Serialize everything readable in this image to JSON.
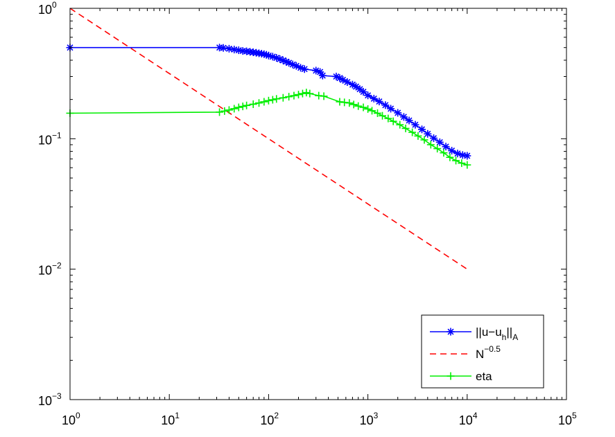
{
  "chart_data": {
    "type": "line",
    "title": "",
    "xlabel": "",
    "ylabel": "",
    "x_scale": "log",
    "y_scale": "log",
    "xlim": [
      1,
      100000
    ],
    "ylim": [
      0.001,
      1
    ],
    "grid": false,
    "legend_position": "bottom-right",
    "x_ticks": [
      {
        "base": "10",
        "exp": "0",
        "value": 1
      },
      {
        "base": "10",
        "exp": "1",
        "value": 10
      },
      {
        "base": "10",
        "exp": "2",
        "value": 100
      },
      {
        "base": "10",
        "exp": "3",
        "value": 1000
      },
      {
        "base": "10",
        "exp": "4",
        "value": 10000
      },
      {
        "base": "10",
        "exp": "5",
        "value": 100000
      }
    ],
    "y_ticks": [
      {
        "base": "10",
        "exp": "0",
        "value": 1
      },
      {
        "base": "10",
        "exp": "−1",
        "value": 0.1
      },
      {
        "base": "10",
        "exp": "−2",
        "value": 0.01
      },
      {
        "base": "10",
        "exp": "−3",
        "value": 0.001
      }
    ],
    "series": [
      {
        "name": "||u−u_h||_A",
        "legend": {
          "main": "||u−u",
          "sub1": "h",
          "mid": "||",
          "sub2": "A"
        },
        "color": "#0000ff",
        "marker": "asterisk",
        "line": "solid",
        "points": [
          [
            1,
            0.5
          ],
          [
            32,
            0.5
          ],
          [
            35,
            0.497
          ],
          [
            40,
            0.49
          ],
          [
            45,
            0.483
          ],
          [
            50,
            0.477
          ],
          [
            55,
            0.471
          ],
          [
            60,
            0.468
          ],
          [
            65,
            0.464
          ],
          [
            70,
            0.46
          ],
          [
            75,
            0.456
          ],
          [
            80,
            0.452
          ],
          [
            85,
            0.449
          ],
          [
            90,
            0.445
          ],
          [
            95,
            0.44
          ],
          [
            100,
            0.434
          ],
          [
            110,
            0.426
          ],
          [
            120,
            0.417
          ],
          [
            130,
            0.408
          ],
          [
            140,
            0.399
          ],
          [
            150,
            0.39
          ],
          [
            160,
            0.382
          ],
          [
            175,
            0.371
          ],
          [
            190,
            0.362
          ],
          [
            210,
            0.35
          ],
          [
            230,
            0.342
          ],
          [
            300,
            0.333
          ],
          [
            330,
            0.325
          ],
          [
            350,
            0.305
          ],
          [
            480,
            0.3
          ],
          [
            520,
            0.292
          ],
          [
            560,
            0.283
          ],
          [
            620,
            0.272
          ],
          [
            700,
            0.26
          ],
          [
            760,
            0.251
          ],
          [
            830,
            0.24
          ],
          [
            900,
            0.229
          ],
          [
            1000,
            0.215
          ],
          [
            1150,
            0.203
          ],
          [
            1300,
            0.193
          ],
          [
            1500,
            0.181
          ],
          [
            1700,
            0.17
          ],
          [
            2000,
            0.158
          ],
          [
            2300,
            0.147
          ],
          [
            2600,
            0.138
          ],
          [
            3000,
            0.128
          ],
          [
            3500,
            0.118
          ],
          [
            4000,
            0.109
          ],
          [
            4600,
            0.101
          ],
          [
            5300,
            0.094
          ],
          [
            6100,
            0.087
          ],
          [
            7000,
            0.081
          ],
          [
            8000,
            0.077
          ],
          [
            9000,
            0.075
          ],
          [
            10000,
            0.074
          ]
        ]
      },
      {
        "name": "N^−0.5",
        "legend": {
          "main": "N",
          "sup": "−0.5"
        },
        "color": "#ff0000",
        "marker": "none",
        "line": "dashed",
        "points": [
          [
            1,
            1
          ],
          [
            10000,
            0.01
          ]
        ]
      },
      {
        "name": "eta",
        "legend": {
          "main": "eta"
        },
        "color": "#00ee00",
        "marker": "plus",
        "line": "solid",
        "points": [
          [
            1,
            0.157
          ],
          [
            32,
            0.16
          ],
          [
            36,
            0.163
          ],
          [
            40,
            0.166
          ],
          [
            45,
            0.17
          ],
          [
            50,
            0.174
          ],
          [
            55,
            0.177
          ],
          [
            60,
            0.18
          ],
          [
            70,
            0.184
          ],
          [
            80,
            0.188
          ],
          [
            90,
            0.192
          ],
          [
            100,
            0.196
          ],
          [
            110,
            0.199
          ],
          [
            120,
            0.202
          ],
          [
            140,
            0.206
          ],
          [
            160,
            0.21
          ],
          [
            180,
            0.214
          ],
          [
            200,
            0.218
          ],
          [
            220,
            0.222
          ],
          [
            240,
            0.226
          ],
          [
            260,
            0.222
          ],
          [
            320,
            0.214
          ],
          [
            360,
            0.212
          ],
          [
            520,
            0.192
          ],
          [
            580,
            0.19
          ],
          [
            650,
            0.188
          ],
          [
            720,
            0.183
          ],
          [
            800,
            0.178
          ],
          [
            900,
            0.174
          ],
          [
            1000,
            0.169
          ],
          [
            1100,
            0.164
          ],
          [
            1250,
            0.157
          ],
          [
            1400,
            0.15
          ],
          [
            1600,
            0.143
          ],
          [
            1800,
            0.136
          ],
          [
            2100,
            0.128
          ],
          [
            2400,
            0.12
          ],
          [
            2800,
            0.112
          ],
          [
            3200,
            0.105
          ],
          [
            3700,
            0.098
          ],
          [
            4300,
            0.09
          ],
          [
            5000,
            0.084
          ],
          [
            5800,
            0.078
          ],
          [
            6700,
            0.072
          ],
          [
            7700,
            0.068
          ],
          [
            8800,
            0.065
          ],
          [
            10000,
            0.063
          ]
        ]
      }
    ]
  }
}
